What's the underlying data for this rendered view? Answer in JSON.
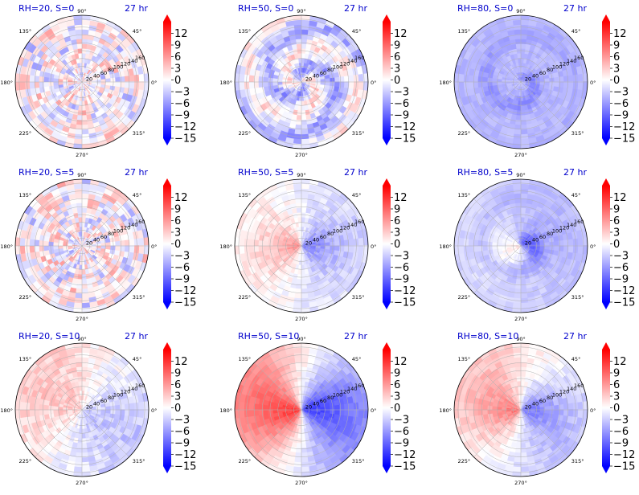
{
  "figure": {
    "colors": {
      "negative": "#0000ff",
      "zero": "#ffffff",
      "positive": "#ff0000",
      "title": "#0000cc",
      "grid": "#b0b0b0"
    },
    "colorbar_ticks": [
      "12",
      "9",
      "6",
      "3",
      "0",
      "−3",
      "−6",
      "−9",
      "−12",
      "−15"
    ],
    "angle_labels": {
      "a90": "90°",
      "a45": "45°",
      "a135": "135°",
      "a180": "180°",
      "a0": "0°",
      "a225": "225°",
      "a270": "270°",
      "a315": "315°"
    },
    "radial_labels": [
      "20",
      "40",
      "60",
      "80",
      "100",
      "120",
      "140",
      "160"
    ]
  },
  "chart_data": [
    {
      "type": "heatmap",
      "projection": "polar",
      "title": "RH=20, S=0",
      "time_label": "27 hr",
      "rlim": [
        0,
        170
      ],
      "clim": [
        -15,
        15
      ],
      "colorbar_extend": "both",
      "pattern": "noise",
      "dominant_anomaly": "near zero, small-scale mixed"
    },
    {
      "type": "heatmap",
      "projection": "polar",
      "title": "RH=50, S=0",
      "time_label": "27 hr",
      "rlim": [
        0,
        170
      ],
      "clim": [
        -15,
        15
      ],
      "colorbar_extend": "both",
      "pattern": "weak-spiral",
      "dominant_anomaly": "weakly negative"
    },
    {
      "type": "heatmap",
      "projection": "polar",
      "title": "RH=80, S=0",
      "time_label": "27 hr",
      "rlim": [
        0,
        170
      ],
      "clim": [
        -15,
        15
      ],
      "colorbar_extend": "both",
      "pattern": "negative-spiral",
      "dominant_anomaly": "negative"
    },
    {
      "type": "heatmap",
      "projection": "polar",
      "title": "RH=20, S=5",
      "time_label": "27 hr",
      "rlim": [
        0,
        170
      ],
      "clim": [
        -15,
        15
      ],
      "colorbar_extend": "both",
      "pattern": "noise",
      "dominant_anomaly": "near zero, small-scale mixed"
    },
    {
      "type": "heatmap",
      "projection": "polar",
      "title": "RH=50, S=5",
      "time_label": "27 hr",
      "rlim": [
        0,
        170
      ],
      "clim": [
        -15,
        15
      ],
      "colorbar_extend": "both",
      "pattern": "dipole",
      "dominant_anomaly": "positive west, negative east"
    },
    {
      "type": "heatmap",
      "projection": "polar",
      "title": "RH=80, S=5",
      "time_label": "27 hr",
      "rlim": [
        0,
        170
      ],
      "clim": [
        -15,
        15
      ],
      "colorbar_extend": "both",
      "pattern": "negative-spiral-dipole",
      "dominant_anomaly": "negative with weak positive west"
    },
    {
      "type": "heatmap",
      "projection": "polar",
      "title": "RH=20, S=10",
      "time_label": "27 hr",
      "rlim": [
        0,
        170
      ],
      "clim": [
        -15,
        15
      ],
      "colorbar_extend": "both",
      "pattern": "weak-dipole",
      "dominant_anomaly": "weakly positive north-west, weakly negative south-east"
    },
    {
      "type": "heatmap",
      "projection": "polar",
      "title": "RH=50, S=10",
      "time_label": "27 hr",
      "rlim": [
        0,
        170
      ],
      "clim": [
        -15,
        15
      ],
      "colorbar_extend": "both",
      "pattern": "strong-dipole",
      "dominant_anomaly": "strong positive west, strong negative east"
    },
    {
      "type": "heatmap",
      "projection": "polar",
      "title": "RH=80, S=10",
      "time_label": "27 hr",
      "rlim": [
        0,
        170
      ],
      "clim": [
        -15,
        15
      ],
      "colorbar_extend": "both",
      "pattern": "strong-dipole-spiral",
      "dominant_anomaly": "positive west, negative east"
    }
  ]
}
